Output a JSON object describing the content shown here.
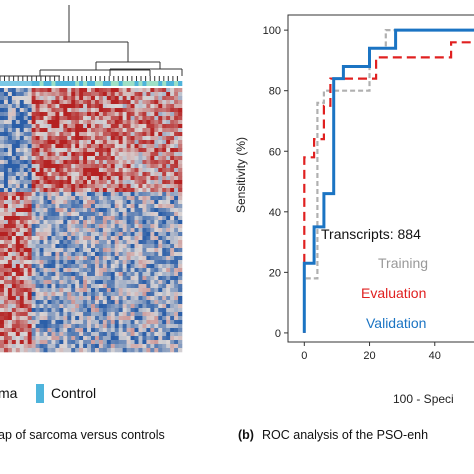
{
  "panel_a": {
    "caption": "ap of sarcoma versus controls",
    "legend": [
      {
        "label": "ma",
        "color": "#1a6fc0"
      },
      {
        "label": "Control",
        "color": "#4eb4dc"
      }
    ],
    "colors": {
      "low": "#2a5ea8",
      "mid": "#d9d4d4",
      "high": "#b52222"
    }
  },
  "panel_b": {
    "caption_prefix": "(b)",
    "caption_text": "ROC analysis of the PSO-enh",
    "annotations": [
      {
        "label": "Transcripts: 884",
        "color": "#111111"
      },
      {
        "label": "Training",
        "color": "#999999"
      },
      {
        "label": "Evaluation",
        "color": "#e02020"
      },
      {
        "label": "Validation",
        "color": "#1b74c3"
      }
    ]
  },
  "chart_data": {
    "type": "line",
    "xlabel": "100 - Speci",
    "ylabel": "Sensitivity (%)",
    "xlim": [
      -5,
      60
    ],
    "ylim": [
      -3,
      105
    ],
    "x_ticks": [
      "0",
      "20",
      "40"
    ],
    "y_ticks": [
      "0",
      "20",
      "40",
      "60",
      "80",
      "100"
    ],
    "series": [
      {
        "name": "Training",
        "color": "#b0b0b0",
        "dash": "5,3",
        "x": [
          0,
          0,
          4,
          4,
          6,
          6,
          20,
          20,
          25,
          25,
          60
        ],
        "y": [
          0,
          18,
          18,
          76,
          76,
          80,
          80,
          94,
          94,
          100,
          100
        ]
      },
      {
        "name": "Evaluation",
        "color": "#e02020",
        "dash": "9,5",
        "x": [
          0,
          0,
          3,
          3,
          6,
          6,
          8,
          8,
          22,
          22,
          45,
          45,
          60
        ],
        "y": [
          0,
          58,
          58,
          64,
          64,
          75,
          75,
          84,
          84,
          91,
          91,
          96,
          96
        ]
      },
      {
        "name": "Validation",
        "color": "#1b74c3",
        "dash": "",
        "x": [
          0,
          0,
          3,
          3,
          6,
          6,
          9,
          9,
          12,
          12,
          20,
          20,
          28,
          28,
          60
        ],
        "y": [
          0,
          23,
          23,
          35,
          35,
          46,
          46,
          84,
          84,
          88,
          88,
          94,
          94,
          100,
          100
        ]
      }
    ]
  }
}
